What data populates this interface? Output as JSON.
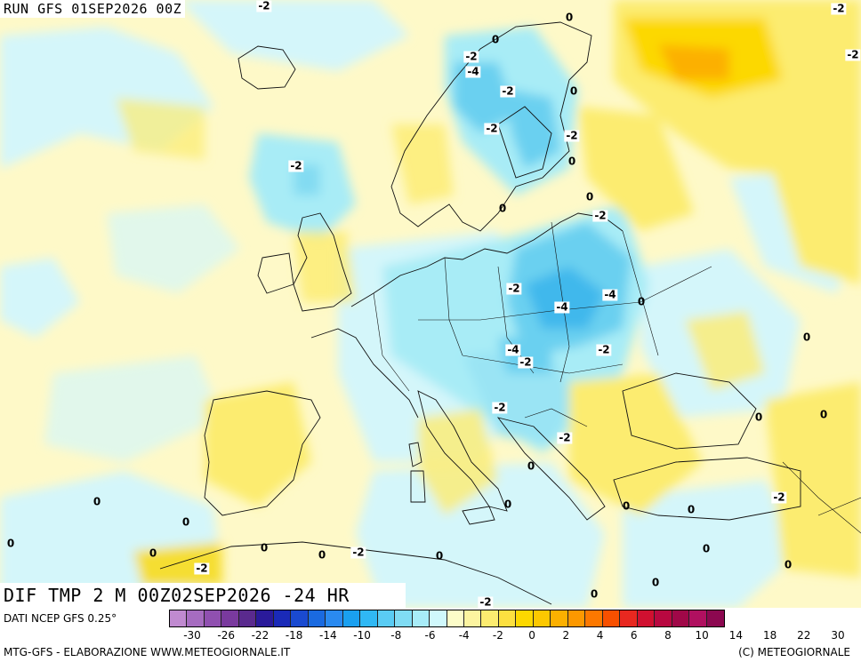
{
  "header": {
    "run_label": "RUN GFS 01SEP2026 00Z"
  },
  "map": {
    "product_label": "DIF TMP 2 M 00Z02SEP2026 -24 HR",
    "contour_labels": [
      {
        "text": "-2"
      },
      {
        "text": "-2"
      },
      {
        "text": "0"
      },
      {
        "text": "0"
      },
      {
        "text": "-2"
      },
      {
        "text": "-4"
      },
      {
        "text": "-2"
      },
      {
        "text": "0"
      },
      {
        "text": "-2"
      },
      {
        "text": "-2"
      },
      {
        "text": "0"
      },
      {
        "text": "-2"
      },
      {
        "text": "0"
      },
      {
        "text": "0"
      },
      {
        "text": "-2"
      },
      {
        "text": "-2"
      },
      {
        "text": "-4"
      },
      {
        "text": "-4"
      },
      {
        "text": "0"
      },
      {
        "text": "-4"
      },
      {
        "text": "-2"
      },
      {
        "text": "-2"
      },
      {
        "text": "0"
      },
      {
        "text": "-2"
      },
      {
        "text": "-2"
      },
      {
        "text": "0"
      },
      {
        "text": "0"
      },
      {
        "text": "0"
      },
      {
        "text": "0"
      },
      {
        "text": "0"
      },
      {
        "text": "0"
      },
      {
        "text": "0"
      },
      {
        "text": "-2"
      },
      {
        "text": "0"
      },
      {
        "text": "0"
      },
      {
        "text": "-2"
      },
      {
        "text": "0"
      },
      {
        "text": "-2"
      },
      {
        "text": "0"
      },
      {
        "text": "0"
      },
      {
        "text": "0"
      },
      {
        "text": "0"
      },
      {
        "text": "0"
      },
      {
        "text": "0"
      },
      {
        "text": "0"
      },
      {
        "text": "-2"
      },
      {
        "text": "-2"
      }
    ]
  },
  "legend": {
    "source": "DATI NCEP GFS 0.25°",
    "colors": [
      "#c08ad0",
      "#a66cc0",
      "#9050b0",
      "#7a3a9e",
      "#5a2a8e",
      "#2a1a9a",
      "#1a2ab8",
      "#1a4ad0",
      "#1a6ae0",
      "#2a8af0",
      "#1aa0f0",
      "#30b8f4",
      "#5accf4",
      "#80dcf4",
      "#a8ecf8",
      "#d0f8fc",
      "#fcfcc8",
      "#fcf4a0",
      "#fcec70",
      "#fce040",
      "#fcd800",
      "#fcc800",
      "#fcb000",
      "#fc9800",
      "#fc7800",
      "#f85000",
      "#e82820",
      "#d01030",
      "#b80840",
      "#a00848",
      "#b01060",
      "#8c0850"
    ],
    "ticks": [
      "-30",
      "-26",
      "-22",
      "-18",
      "-14",
      "-10",
      "-8",
      "-6",
      "-4",
      "-2",
      "0",
      "2",
      "4",
      "6",
      "8",
      "10",
      "14",
      "18",
      "22",
      "30"
    ]
  },
  "footer": {
    "left": "MTG-GFS - ELABORAZIONE WWW.METEOGIORNALE.IT",
    "right": "(C) METEOGIORNALE"
  }
}
